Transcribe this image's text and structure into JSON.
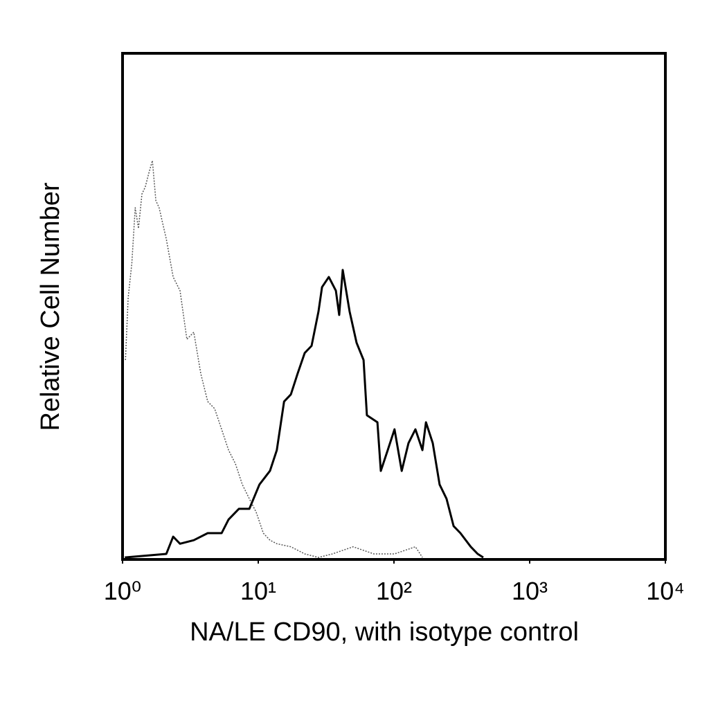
{
  "chart_data": {
    "type": "line",
    "xlabel": "NA/LE CD90, with isotype control",
    "ylabel": "Relative Cell Number",
    "xscale": "log",
    "xlim": [
      1,
      10000
    ],
    "xticks": [
      {
        "value": 1,
        "label": "10⁰"
      },
      {
        "value": 10,
        "label": "10¹"
      },
      {
        "value": 100,
        "label": "10²"
      },
      {
        "value": 1000,
        "label": "10³"
      },
      {
        "value": 10000,
        "label": "10⁴"
      }
    ],
    "ylim": [
      0,
      100
    ],
    "series": [
      {
        "color": "#555555",
        "line_style": "dotted",
        "x": [
          1.05,
          1.1,
          1.17,
          1.24,
          1.31,
          1.39,
          1.47,
          1.56,
          1.66,
          1.76,
          1.86,
          2.1,
          2.36,
          2.65,
          2.98,
          3.35,
          3.77,
          4.24,
          4.77,
          5.37,
          6.04,
          6.79,
          7.63,
          8.59,
          9.66,
          10.9,
          12.2,
          13.7,
          17.4,
          22.0,
          27.8,
          35.2,
          50.0,
          71.1,
          101,
          144,
          162
        ],
        "values": [
          39.4,
          51.7,
          58.5,
          69.5,
          65.4,
          72.2,
          73.6,
          76.3,
          78.8,
          70.9,
          69.5,
          63.3,
          55.8,
          53.1,
          43.5,
          44.9,
          36.7,
          31.2,
          29.8,
          25.7,
          21.6,
          18.9,
          14.8,
          12.0,
          9.3,
          5.2,
          3.8,
          3.1,
          2.5,
          1.1,
          0.4,
          1.1,
          2.5,
          1.1,
          1.1,
          2.5,
          0.4
        ]
      },
      {
        "color": "#000000",
        "line_style": "solid",
        "x": [
          1.04,
          2.1,
          2.36,
          2.65,
          3.35,
          4.24,
          5.37,
          6.04,
          7.2,
          8.59,
          10.2,
          12.2,
          13.7,
          15.5,
          17.4,
          19.5,
          22.0,
          24.7,
          27.8,
          29.5,
          33.1,
          37.3,
          39.5,
          41.9,
          47.1,
          53.0,
          59.7,
          63.2,
          75.5,
          80.0,
          90.0,
          101,
          114,
          128,
          144,
          162,
          172,
          193,
          217,
          244,
          275,
          309,
          368,
          414,
          455
        ],
        "values": [
          0.4,
          1.1,
          4.5,
          3.1,
          3.8,
          5.2,
          5.2,
          7.9,
          10.0,
          10.0,
          14.8,
          17.5,
          21.6,
          31.2,
          32.6,
          36.7,
          40.8,
          42.2,
          49.0,
          53.8,
          55.8,
          53.1,
          48.3,
          57.2,
          49.0,
          42.8,
          39.4,
          28.5,
          27.1,
          17.5,
          21.6,
          25.7,
          17.5,
          23.0,
          25.7,
          21.6,
          27.1,
          23.0,
          14.8,
          12.0,
          6.6,
          5.2,
          2.5,
          1.1,
          0.4
        ]
      }
    ]
  }
}
